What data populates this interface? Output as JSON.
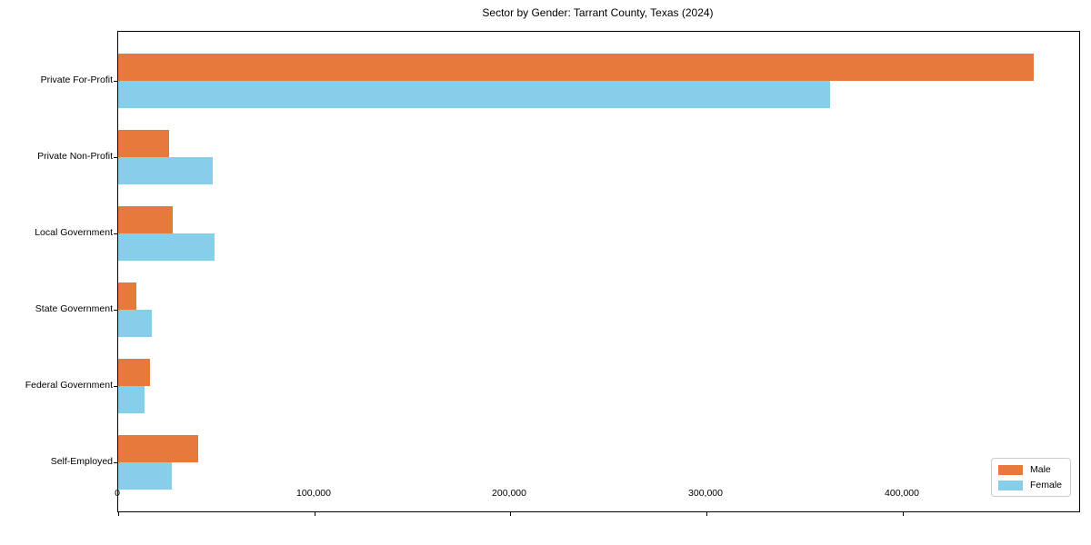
{
  "chart_data": {
    "type": "bar",
    "orientation": "horizontal",
    "title": "Sector by Gender: Tarrant County, Texas (2024)",
    "categories": [
      "Private For-Profit",
      "Private Non-Profit",
      "Local Government",
      "State Government",
      "Federal Government",
      "Self-Employed"
    ],
    "series": [
      {
        "name": "Male",
        "color": "#E8793D",
        "values": [
          467000,
          26000,
          28000,
          9500,
          16000,
          41000
        ]
      },
      {
        "name": "Female",
        "color": "#87CEEB",
        "values": [
          363000,
          48000,
          49000,
          17000,
          13500,
          27500
        ]
      }
    ],
    "xlabel": "",
    "ylabel": "",
    "xlim": [
      0,
      490000
    ],
    "x_ticks": [
      {
        "value": 0,
        "label": "0"
      },
      {
        "value": 100000,
        "label": "100,000"
      },
      {
        "value": 200000,
        "label": "200,000"
      },
      {
        "value": 300000,
        "label": "300,000"
      },
      {
        "value": 400000,
        "label": "400,000"
      }
    ],
    "grid": false,
    "legend": {
      "position": "lower right",
      "entries": [
        "Male",
        "Female"
      ]
    }
  }
}
